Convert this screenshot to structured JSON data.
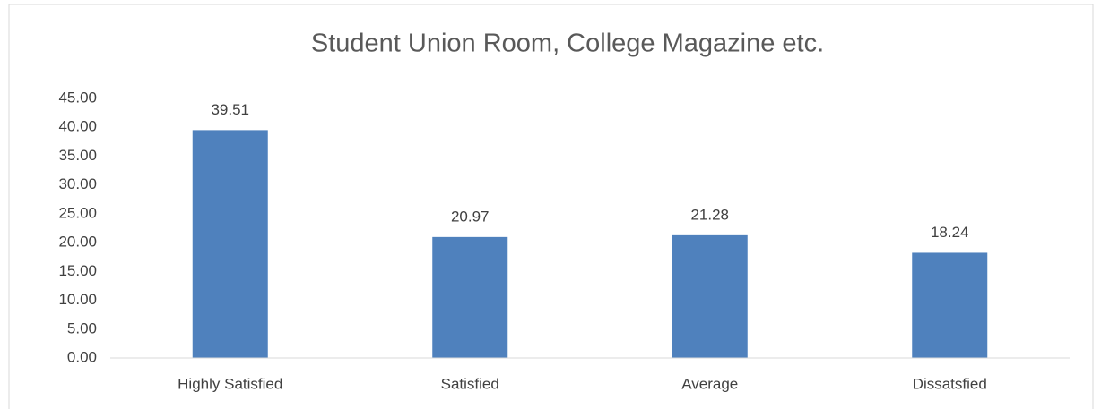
{
  "chart_data": {
    "type": "bar",
    "title": "Student Union Room, College Magazine etc.",
    "categories": [
      "Highly Satisfied",
      "Satisfied",
      "Average",
      "Dissatsfied"
    ],
    "values": [
      39.51,
      20.97,
      21.28,
      18.24
    ],
    "color": "#4f81bd",
    "ylim": [
      0,
      45
    ],
    "yticks": [
      {
        "value": 0,
        "label": "0.00"
      },
      {
        "value": 5,
        "label": "5.00"
      },
      {
        "value": 10,
        "label": "10.00"
      },
      {
        "value": 15,
        "label": "15.00"
      },
      {
        "value": 20,
        "label": "20.00"
      },
      {
        "value": 25,
        "label": "25.00"
      },
      {
        "value": 30,
        "label": "30.00"
      },
      {
        "value": 35,
        "label": "35.00"
      },
      {
        "value": 40,
        "label": "40.00"
      },
      {
        "value": 45,
        "label": "45.00"
      }
    ],
    "grid": false
  }
}
